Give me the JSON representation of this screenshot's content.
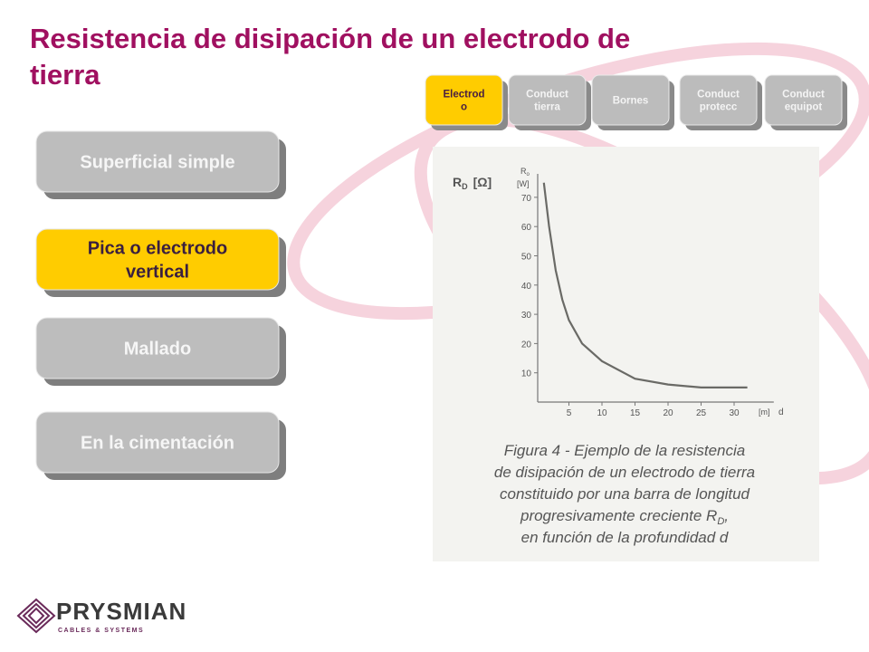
{
  "header": {
    "title_lines": [
      "Resistencia de disipación de un electrodo de",
      "tierra"
    ]
  },
  "tabs": [
    {
      "lines": [
        "Electrod",
        "o"
      ],
      "active": true
    },
    {
      "lines": [
        "Conduct",
        "tierra"
      ],
      "active": false
    },
    {
      "lines": [
        "Bornes"
      ],
      "active": false
    },
    {
      "lines": [
        "Conduct",
        "protecc"
      ],
      "active": false
    },
    {
      "lines": [
        "Conduct",
        "equipot"
      ],
      "active": false
    }
  ],
  "buttons": [
    {
      "lines": [
        "Superficial simple"
      ],
      "active": false
    },
    {
      "lines": [
        "Pica o electrodo",
        "vertical"
      ],
      "active": true
    },
    {
      "lines": [
        "Mallado"
      ],
      "active": false
    },
    {
      "lines": [
        "En la cimentación"
      ],
      "active": false
    }
  ],
  "figure": {
    "type": "line",
    "ylabel": {
      "symbol": "R",
      "sub": "D",
      "unit": "[Ω]"
    },
    "ylabel2": {
      "symbol": "R",
      "sub": "o",
      "unit": "[W]"
    },
    "xlabel": {
      "unit": "[m]",
      "symbol": "d"
    },
    "x": [
      1.2,
      2,
      3,
      4,
      5,
      7,
      10,
      15,
      20,
      25,
      32
    ],
    "values": [
      75,
      60,
      45,
      35,
      28,
      20,
      14,
      8,
      6,
      5,
      5
    ],
    "color": "#6a6a66",
    "xlim": [
      0,
      36
    ],
    "ylim": [
      0,
      78
    ],
    "xticks": [
      5,
      10,
      15,
      20,
      25,
      30
    ],
    "yticks": [
      10,
      20,
      30,
      40,
      50,
      60,
      70
    ],
    "caption": {
      "lines": [
        "Figura 4 - Ejemplo de la resistencia",
        "de disipación de un electrodo de tierra",
        "constituido por una barra de longitud",
        "progresivamente creciente R",
        "en función de la profundidad d"
      ],
      "sub": "D",
      "end": ","
    }
  },
  "logo": {
    "name": "PRYSMIAN",
    "tagline": "CABLES & SYSTEMS"
  }
}
